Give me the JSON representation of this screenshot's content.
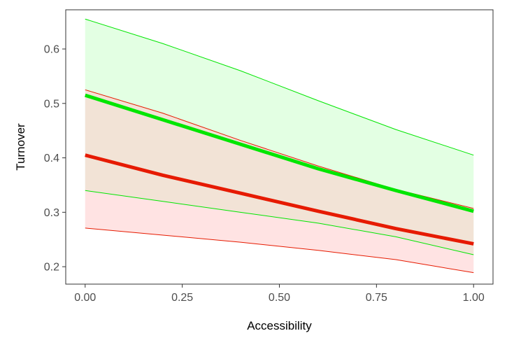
{
  "chart_data": {
    "type": "line",
    "xlabel": "Accessibility",
    "ylabel": "Turnover",
    "xlim": [
      -0.05,
      1.05
    ],
    "ylim": [
      0.168,
      0.672
    ],
    "x_ticks": [
      0.0,
      0.25,
      0.5,
      0.75,
      1.0
    ],
    "x_tick_labels": [
      "0.00",
      "0.25",
      "0.50",
      "0.75",
      "1.00"
    ],
    "y_ticks": [
      0.2,
      0.3,
      0.4,
      0.5,
      0.6
    ],
    "y_tick_labels": [
      "0.2",
      "0.3",
      "0.4",
      "0.5",
      "0.6"
    ],
    "grid": false,
    "x": [
      0.0,
      0.2,
      0.4,
      0.6,
      0.8,
      1.0
    ],
    "series": [
      {
        "color": "#00e600",
        "fill_color": "#ccffcc",
        "values": [
          0.515,
          0.47,
          0.425,
          0.38,
          0.34,
          0.302
        ],
        "lower": [
          0.34,
          0.32,
          0.3,
          0.28,
          0.255,
          0.222
        ],
        "upper": [
          0.655,
          0.61,
          0.56,
          0.505,
          0.452,
          0.405
        ]
      },
      {
        "color": "#e61a00",
        "fill_color": "#ffcccc",
        "values": [
          0.405,
          0.368,
          0.335,
          0.302,
          0.27,
          0.242
        ],
        "lower": [
          0.271,
          0.258,
          0.245,
          0.23,
          0.213,
          0.189
        ],
        "upper": [
          0.525,
          0.482,
          0.432,
          0.385,
          0.342,
          0.307
        ]
      }
    ]
  }
}
